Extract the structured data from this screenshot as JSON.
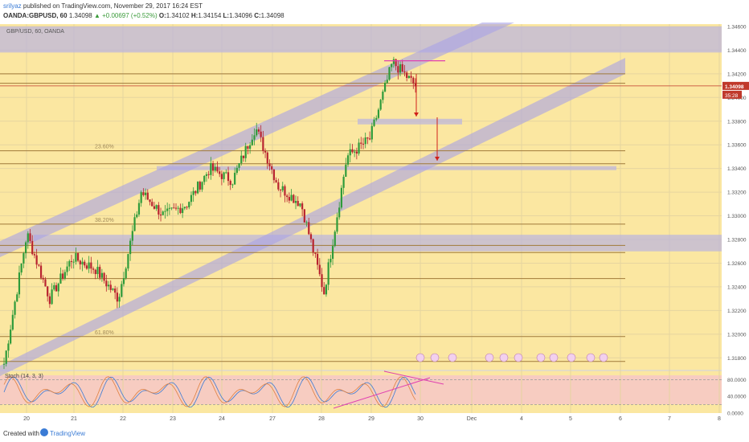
{
  "header": {
    "author": "srilyaz",
    "published": "published on TradingView.com, November 29, 2017 16:24 EST",
    "symbol": "OANDA:GBPUSD, 60",
    "last": "1.34098",
    "change": "▲ +0.00697 (+0.52%)",
    "open_label": "O:",
    "open": "1.34102",
    "high_label": "H:",
    "high": "1.34154",
    "low_label": "L:",
    "low": "1.34096",
    "close_label": "C:",
    "close": "1.34098"
  },
  "main_pane": {
    "legend": "GBP/USD, 60, OANDA",
    "price_badge": "1.34098",
    "timer_badge": "35:28",
    "fib_labels": [
      {
        "text": "23.60%",
        "price": 1.3355
      },
      {
        "text": "38.20%",
        "price": 1.3293
      },
      {
        "text": "61.80%",
        "price": 1.3198
      }
    ]
  },
  "oscillator": {
    "legend": "Stoch (14, 3, 3)",
    "axis_labels": [
      "80.0000",
      "40.0000",
      "0.0000"
    ]
  },
  "footer": {
    "created_with": "Created with",
    "brand": "TradingView"
  },
  "colors": {
    "panel_bg": "#fbe7a1",
    "zone_band": "#b9b4e0",
    "horizontal_line": "#a07a3a",
    "candle_up": "#2e9b3a",
    "candle_down": "#b8232f",
    "price_line": "#c0392b",
    "arrow": "#d0201a",
    "pink": "#e040b0",
    "stoch_k": "#3a7bd5",
    "stoch_d": "#e08040",
    "stoch_band": "#f6c7c7"
  },
  "chart_data": {
    "type": "candlestick",
    "symbol": "GBP/USD",
    "interval": "60",
    "y_axis_labels": [
      "1.34600",
      "1.34400",
      "1.34200",
      "1.34000",
      "1.33800",
      "1.33600",
      "1.33400",
      "1.33200",
      "1.33000",
      "1.32800",
      "1.32600",
      "1.32400",
      "1.32200",
      "1.32000",
      "1.31800"
    ],
    "ylim": [
      1.317,
      1.3462
    ],
    "x_labels": [
      "20",
      "21",
      "22",
      "23",
      "24",
      "27",
      "28",
      "29",
      "30",
      "Dec",
      "4",
      "5",
      "6",
      "7",
      "8"
    ],
    "horizontal_levels": [
      1.342,
      1.3412,
      1.3355,
      1.3344,
      1.3293,
      1.3275,
      1.3269,
      1.3247,
      1.3198,
      1.3177
    ],
    "keypoints": [
      {
        "x": "20",
        "close": 1.3175
      },
      {
        "x": "20",
        "close": 1.3285
      },
      {
        "x": "21",
        "close": 1.323
      },
      {
        "x": "21",
        "close": 1.3265
      },
      {
        "x": "22",
        "close": 1.3255
      },
      {
        "x": "22",
        "close": 1.323
      },
      {
        "x": "23",
        "close": 1.332
      },
      {
        "x": "23",
        "close": 1.33
      },
      {
        "x": "24",
        "close": 1.331
      },
      {
        "x": "24",
        "close": 1.334
      },
      {
        "x": "27",
        "close": 1.333
      },
      {
        "x": "27",
        "close": 1.3375
      },
      {
        "x": "27",
        "close": 1.3325
      },
      {
        "x": "28",
        "close": 1.331
      },
      {
        "x": "28",
        "close": 1.3235
      },
      {
        "x": "28",
        "close": 1.335
      },
      {
        "x": "29",
        "close": 1.3365
      },
      {
        "x": "29",
        "close": 1.343
      },
      {
        "x": "30",
        "close": 1.341
      }
    ],
    "stochastic": {
      "name": "Stoch (14, 3, 3)",
      "levels": [
        80,
        20
      ],
      "ylim": [
        0,
        100
      ]
    }
  }
}
